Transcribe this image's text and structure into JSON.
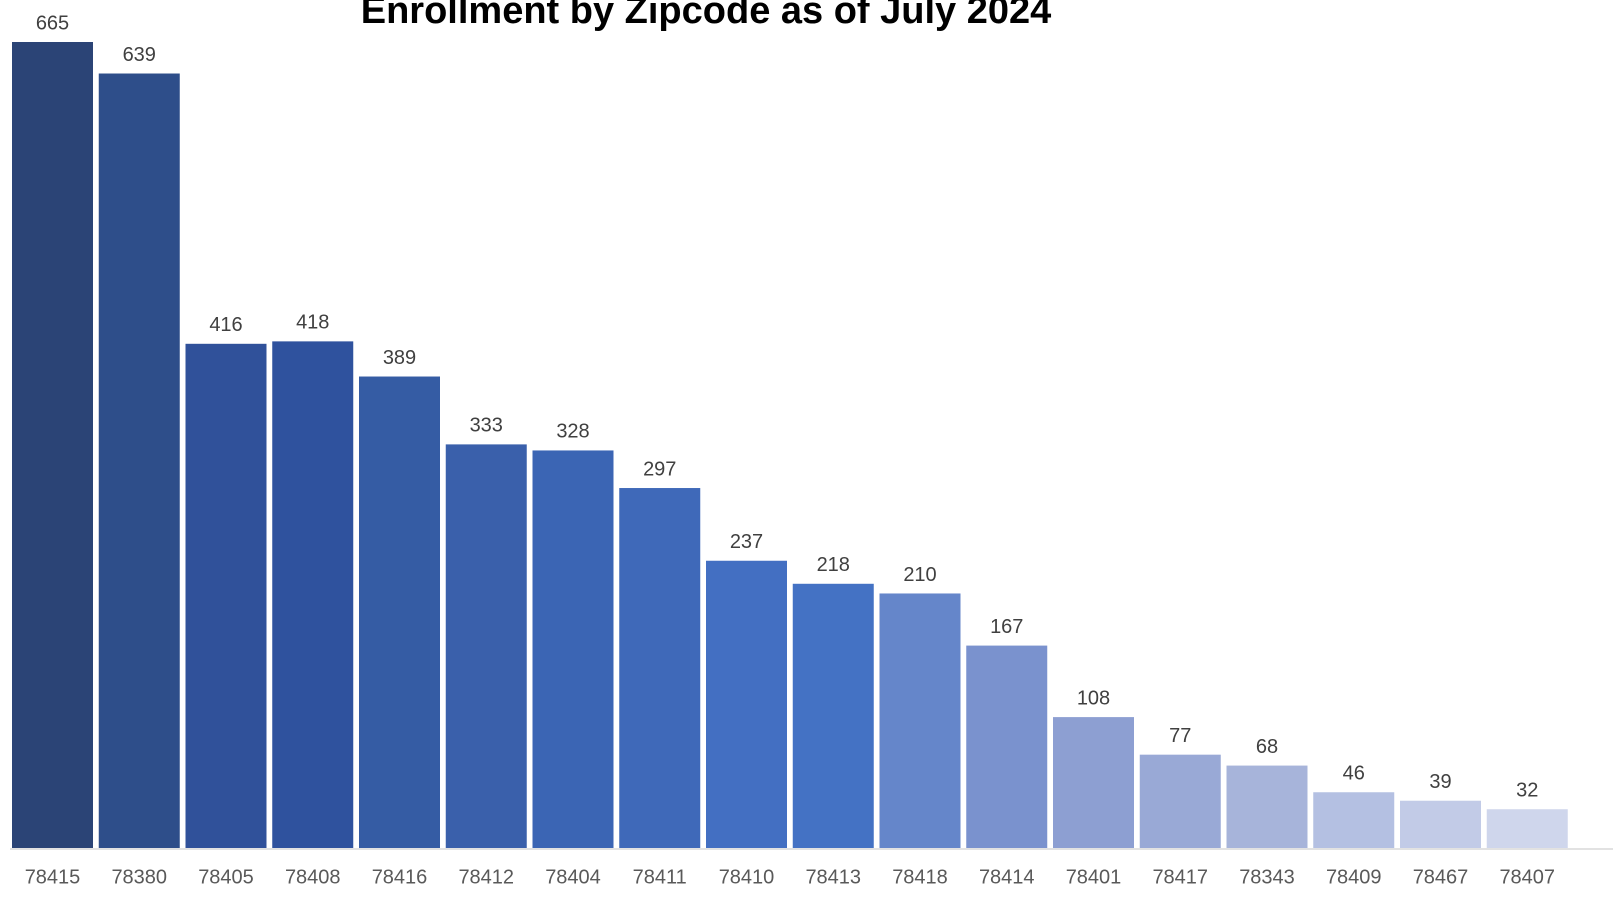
{
  "chart_data": {
    "type": "bar",
    "title": "Enrollment by Zipcode as of July 2024",
    "xlabel": "",
    "ylabel": "",
    "categories": [
      "78415",
      "78380",
      "78405",
      "78408",
      "78416",
      "78412",
      "78404",
      "78411",
      "78410",
      "78413",
      "78418",
      "78414",
      "78401",
      "78417",
      "78343",
      "78409",
      "78467",
      "78407"
    ],
    "values": [
      665,
      639,
      416,
      418,
      389,
      333,
      328,
      297,
      237,
      218,
      210,
      167,
      108,
      77,
      68,
      46,
      39,
      32
    ],
    "ylim": [
      0,
      665
    ],
    "grid": false,
    "legend": "none",
    "data_labels": true,
    "bar_colors": [
      "#2B4476",
      "#2E4E8A",
      "#30519A",
      "#2F529E",
      "#355CA4",
      "#3A60AB",
      "#3B65B4",
      "#3F69B9",
      "#436FC2",
      "#4472C4",
      "#6586CA",
      "#7A92CE",
      "#8D9FD2",
      "#99A9D6",
      "#A7B4DA",
      "#B4C0E2",
      "#C2CBE7",
      "#CFD6EC"
    ],
    "axis_line_color": "#D9D9D9"
  }
}
